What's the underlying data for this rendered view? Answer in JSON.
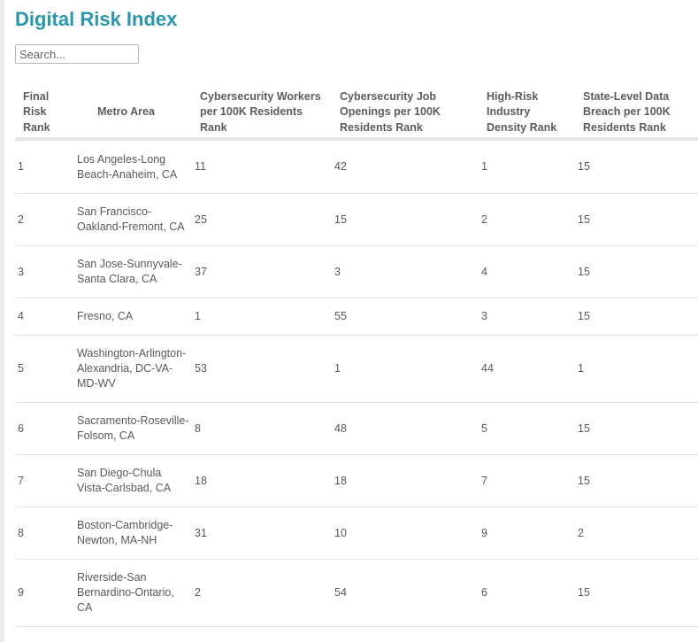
{
  "title": "Digital Risk Index",
  "search": {
    "placeholder": "Search..."
  },
  "columns": [
    "Final Risk Rank",
    "Metro Area",
    "Cybersecurity Workers per 100K Residents Rank",
    "Cybersecurity Job Openings per 100K Residents Rank",
    "High-Risk Industry Density Rank",
    "State-Level Data Breach per 100K Residents Rank"
  ],
  "rows": [
    {
      "rank": "1",
      "metro": "Los Angeles-Long Beach-Anaheim, CA",
      "workers": "11",
      "openings": "42",
      "density": "1",
      "breach": "15"
    },
    {
      "rank": "2",
      "metro": "San Francisco-Oakland-Fremont, CA",
      "workers": "25",
      "openings": "15",
      "density": "2",
      "breach": "15"
    },
    {
      "rank": "3",
      "metro": "San Jose-Sunnyvale-Santa Clara, CA",
      "workers": "37",
      "openings": "3",
      "density": "4",
      "breach": "15"
    },
    {
      "rank": "4",
      "metro": "Fresno, CA",
      "workers": "1",
      "openings": "55",
      "density": "3",
      "breach": "15"
    },
    {
      "rank": "5",
      "metro": "Washington-Arlington-Alexandria, DC-VA-MD-WV",
      "workers": "53",
      "openings": "1",
      "density": "44",
      "breach": "1"
    },
    {
      "rank": "6",
      "metro": "Sacramento-Roseville-Folsom, CA",
      "workers": "8",
      "openings": "48",
      "density": "5",
      "breach": "15"
    },
    {
      "rank": "7",
      "metro": "San Diego-Chula Vista-Carlsbad, CA",
      "workers": "18",
      "openings": "18",
      "density": "7",
      "breach": "15"
    },
    {
      "rank": "8",
      "metro": "Boston-Cambridge-Newton, MA-NH",
      "workers": "31",
      "openings": "10",
      "density": "9",
      "breach": "2"
    },
    {
      "rank": "9",
      "metro": "Riverside-San Bernardino-Ontario, CA",
      "workers": "2",
      "openings": "54",
      "density": "6",
      "breach": "15"
    }
  ]
}
